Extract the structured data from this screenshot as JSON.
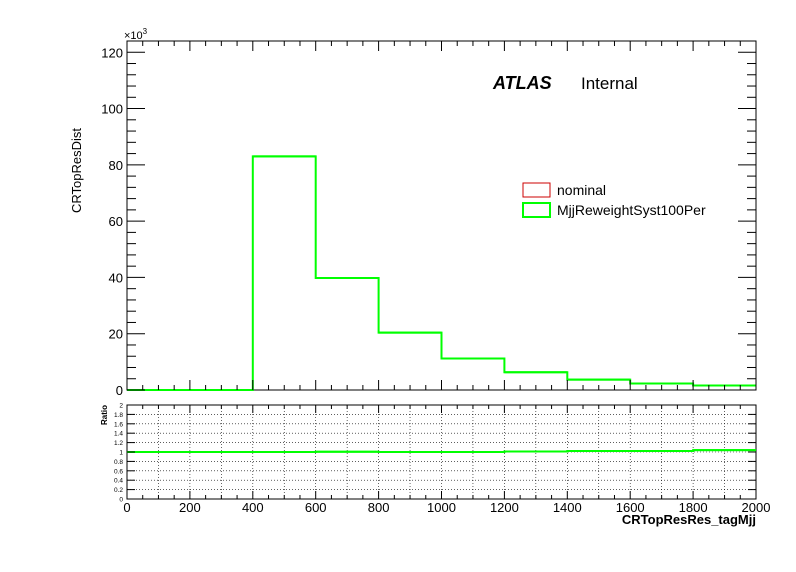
{
  "chart_data": {
    "type": "histogram",
    "main": {
      "ylabel": "CRTopResDist",
      "y_exponent": "×10",
      "y_exponent_power": "3",
      "xlim": [
        0,
        2000
      ],
      "ylim": [
        0,
        124
      ],
      "y_ticks": [
        0,
        20,
        40,
        60,
        80,
        100,
        120
      ],
      "y_tick_labels": [
        "0",
        "20",
        "40",
        "60",
        "80",
        "100",
        "120"
      ],
      "bin_edges": [
        0,
        200,
        400,
        600,
        800,
        1000,
        1200,
        1400,
        1600,
        1800,
        2000
      ],
      "series": [
        {
          "name": "nominal",
          "color": "#cc0000",
          "values": [
            0,
            0,
            83.0,
            39.8,
            20.3,
            11.2,
            6.2,
            3.6,
            2.2,
            1.5
          ]
        },
        {
          "name": "MjjReweightSyst100Per",
          "color": "#00ff00",
          "values": [
            0,
            0,
            83.0,
            39.8,
            20.4,
            11.2,
            6.3,
            3.7,
            2.3,
            1.6
          ]
        }
      ],
      "atlas_label": "ATLAS",
      "atlas_sublabel": "Internal",
      "legend_position": "upper-right"
    },
    "ratio": {
      "ylabel": "Ratio",
      "ylim": [
        0,
        2
      ],
      "y_ticks": [
        0,
        0.2,
        0.4,
        0.6,
        0.8,
        1,
        1.2,
        1.4,
        1.6,
        1.8,
        2
      ],
      "y_tick_labels": [
        "0",
        "0.2",
        "0.4",
        "0.6",
        "0.8",
        "1",
        "1.2",
        "1.4",
        "1.6",
        "1.8",
        "2"
      ],
      "grid": true,
      "values": [
        1.0,
        1.0,
        1.0,
        1.005,
        1.0,
        1.0,
        1.01,
        1.02,
        1.02,
        1.04
      ],
      "color": "#00ff00"
    },
    "xlabel": "CRTopResRes_tagMjj",
    "x_ticks": [
      0,
      200,
      400,
      600,
      800,
      1000,
      1200,
      1400,
      1600,
      1800,
      2000
    ],
    "x_tick_labels": [
      "0",
      "200",
      "400",
      "600",
      "800",
      "1000",
      "1200",
      "1400",
      "1600",
      "1800",
      "2000"
    ]
  }
}
